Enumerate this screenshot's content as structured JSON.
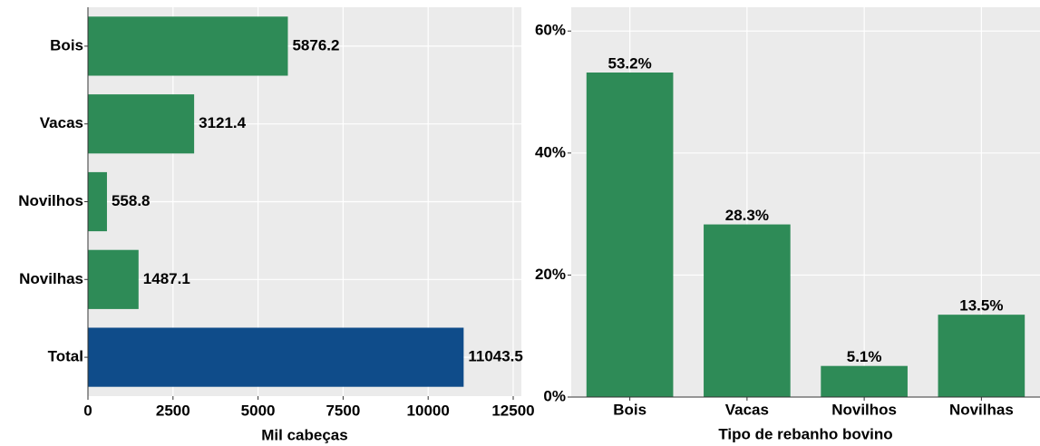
{
  "chart_data": [
    {
      "type": "barh",
      "x_label": "Mil cabeças",
      "categories": [
        "Bois",
        "Vacas",
        "Novilhos",
        "Novilhas",
        "Total"
      ],
      "values": [
        5876.2,
        3121.4,
        558.8,
        1487.1,
        11043.5
      ],
      "colors": [
        "#2e8b57",
        "#2e8b57",
        "#2e8b57",
        "#2e8b57",
        "#0f4c8a"
      ],
      "xlim": [
        0,
        12740
      ],
      "xticks": [
        0,
        2500,
        5000,
        7500,
        10000,
        12500
      ],
      "grid": true
    },
    {
      "type": "bar",
      "x_label": "Tipo de rebanho bovino",
      "categories": [
        "Bois",
        "Vacas",
        "Novilhos",
        "Novilhas"
      ],
      "values": [
        53.2,
        28.3,
        5.1,
        13.5
      ],
      "value_labels": [
        "53.2%",
        "28.3%",
        "5.1%",
        "13.5%"
      ],
      "color": "#2e8b57",
      "ylim": [
        0,
        63.9
      ],
      "yticks": [
        {
          "value": 0,
          "label": "0%"
        },
        {
          "value": 20,
          "label": "20%"
        },
        {
          "value": 40,
          "label": "40%"
        },
        {
          "value": 60,
          "label": "60%"
        }
      ],
      "grid": true
    }
  ]
}
